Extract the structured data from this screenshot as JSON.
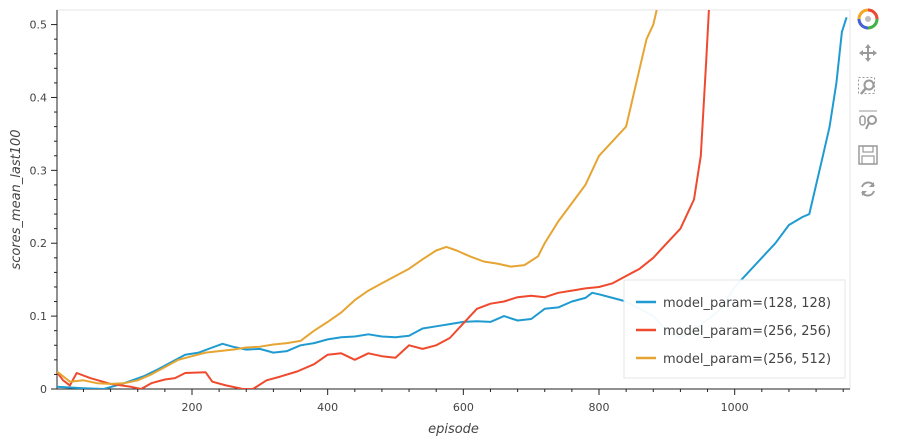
{
  "chart_data": {
    "type": "line",
    "title": "",
    "xlabel": "episode",
    "ylabel": "scores_mean_last100",
    "xlim": [
      1,
      1170
    ],
    "ylim": [
      0,
      0.52
    ],
    "x_ticks": [
      200,
      400,
      600,
      800,
      1000
    ],
    "y_ticks": [
      0,
      0.1,
      0.2,
      0.3,
      0.4,
      0.5
    ],
    "x_tick_labels": [
      "200",
      "400",
      "600",
      "800",
      "1000"
    ],
    "y_tick_labels": [
      "0",
      "0.1",
      "0.2",
      "0.3",
      "0.4",
      "0.5"
    ],
    "grid": false,
    "legend_position": "bottom-right",
    "series": [
      {
        "name": "model_param=(128, 128)",
        "color": "#1f9bd1",
        "points": [
          [
            1,
            0.003
          ],
          [
            40,
            0.001
          ],
          [
            70,
            0.0
          ],
          [
            100,
            0.008
          ],
          [
            130,
            0.018
          ],
          [
            150,
            0.027
          ],
          [
            170,
            0.037
          ],
          [
            190,
            0.047
          ],
          [
            210,
            0.05
          ],
          [
            230,
            0.057
          ],
          [
            245,
            0.062
          ],
          [
            260,
            0.058
          ],
          [
            280,
            0.054
          ],
          [
            300,
            0.055
          ],
          [
            320,
            0.05
          ],
          [
            340,
            0.052
          ],
          [
            360,
            0.06
          ],
          [
            380,
            0.063
          ],
          [
            400,
            0.068
          ],
          [
            420,
            0.071
          ],
          [
            440,
            0.072
          ],
          [
            460,
            0.075
          ],
          [
            480,
            0.072
          ],
          [
            500,
            0.071
          ],
          [
            520,
            0.073
          ],
          [
            540,
            0.083
          ],
          [
            560,
            0.086
          ],
          [
            580,
            0.089
          ],
          [
            600,
            0.092
          ],
          [
            620,
            0.093
          ],
          [
            640,
            0.092
          ],
          [
            660,
            0.1
          ],
          [
            680,
            0.094
          ],
          [
            700,
            0.096
          ],
          [
            720,
            0.11
          ],
          [
            740,
            0.112
          ],
          [
            760,
            0.12
          ],
          [
            780,
            0.125
          ],
          [
            790,
            0.132
          ],
          [
            800,
            0.13
          ],
          [
            820,
            0.125
          ],
          [
            840,
            0.12
          ],
          [
            860,
            0.11
          ],
          [
            880,
            0.1
          ],
          [
            900,
            0.08
          ],
          [
            920,
            0.07
          ],
          [
            940,
            0.08
          ],
          [
            960,
            0.095
          ],
          [
            980,
            0.11
          ],
          [
            1000,
            0.14
          ],
          [
            1020,
            0.16
          ],
          [
            1040,
            0.18
          ],
          [
            1060,
            0.2
          ],
          [
            1080,
            0.225
          ],
          [
            1100,
            0.236
          ],
          [
            1110,
            0.24
          ],
          [
            1120,
            0.28
          ],
          [
            1130,
            0.32
          ],
          [
            1140,
            0.36
          ],
          [
            1150,
            0.42
          ],
          [
            1158,
            0.49
          ],
          [
            1165,
            0.51
          ]
        ]
      },
      {
        "name": "model_param=(256, 256)",
        "color": "#ef4a2e",
        "points": [
          [
            1,
            0.023
          ],
          [
            10,
            0.012
          ],
          [
            20,
            0.005
          ],
          [
            30,
            0.022
          ],
          [
            50,
            0.015
          ],
          [
            80,
            0.007
          ],
          [
            110,
            0.003
          ],
          [
            125,
            0.0
          ],
          [
            140,
            0.008
          ],
          [
            160,
            0.013
          ],
          [
            175,
            0.015
          ],
          [
            190,
            0.022
          ],
          [
            220,
            0.023
          ],
          [
            230,
            0.01
          ],
          [
            250,
            0.005
          ],
          [
            275,
            0.0
          ],
          [
            290,
            0.0
          ],
          [
            310,
            0.012
          ],
          [
            330,
            0.017
          ],
          [
            355,
            0.024
          ],
          [
            380,
            0.034
          ],
          [
            400,
            0.047
          ],
          [
            420,
            0.049
          ],
          [
            440,
            0.04
          ],
          [
            460,
            0.049
          ],
          [
            480,
            0.045
          ],
          [
            500,
            0.043
          ],
          [
            520,
            0.06
          ],
          [
            540,
            0.055
          ],
          [
            560,
            0.06
          ],
          [
            580,
            0.07
          ],
          [
            600,
            0.09
          ],
          [
            620,
            0.11
          ],
          [
            640,
            0.117
          ],
          [
            660,
            0.12
          ],
          [
            680,
            0.126
          ],
          [
            700,
            0.128
          ],
          [
            720,
            0.126
          ],
          [
            740,
            0.132
          ],
          [
            760,
            0.135
          ],
          [
            780,
            0.138
          ],
          [
            800,
            0.14
          ],
          [
            820,
            0.145
          ],
          [
            840,
            0.155
          ],
          [
            860,
            0.165
          ],
          [
            880,
            0.18
          ],
          [
            900,
            0.2
          ],
          [
            920,
            0.22
          ],
          [
            940,
            0.26
          ],
          [
            950,
            0.32
          ],
          [
            958,
            0.45
          ],
          [
            962,
            0.52
          ]
        ]
      },
      {
        "name": "model_param=(256, 512)",
        "color": "#e6a532",
        "points": [
          [
            1,
            0.024
          ],
          [
            20,
            0.01
          ],
          [
            40,
            0.012
          ],
          [
            60,
            0.008
          ],
          [
            80,
            0.007
          ],
          [
            100,
            0.008
          ],
          [
            120,
            0.012
          ],
          [
            140,
            0.02
          ],
          [
            160,
            0.03
          ],
          [
            180,
            0.04
          ],
          [
            200,
            0.045
          ],
          [
            220,
            0.05
          ],
          [
            240,
            0.052
          ],
          [
            260,
            0.054
          ],
          [
            280,
            0.057
          ],
          [
            300,
            0.058
          ],
          [
            320,
            0.061
          ],
          [
            340,
            0.063
          ],
          [
            360,
            0.066
          ],
          [
            380,
            0.08
          ],
          [
            400,
            0.092
          ],
          [
            420,
            0.105
          ],
          [
            440,
            0.122
          ],
          [
            460,
            0.135
          ],
          [
            480,
            0.145
          ],
          [
            500,
            0.155
          ],
          [
            520,
            0.165
          ],
          [
            540,
            0.178
          ],
          [
            560,
            0.19
          ],
          [
            575,
            0.195
          ],
          [
            590,
            0.19
          ],
          [
            610,
            0.182
          ],
          [
            630,
            0.175
          ],
          [
            650,
            0.172
          ],
          [
            670,
            0.168
          ],
          [
            690,
            0.17
          ],
          [
            710,
            0.182
          ],
          [
            720,
            0.2
          ],
          [
            740,
            0.23
          ],
          [
            760,
            0.255
          ],
          [
            780,
            0.28
          ],
          [
            800,
            0.32
          ],
          [
            820,
            0.34
          ],
          [
            840,
            0.36
          ],
          [
            850,
            0.4
          ],
          [
            860,
            0.44
          ],
          [
            870,
            0.48
          ],
          [
            880,
            0.5
          ],
          [
            885,
            0.52
          ]
        ]
      }
    ]
  },
  "toolbar": {
    "tools": [
      "bokeh-logo-icon",
      "pan-icon",
      "box-zoom-icon",
      "wheel-zoom-icon",
      "save-icon",
      "reset-icon"
    ]
  }
}
